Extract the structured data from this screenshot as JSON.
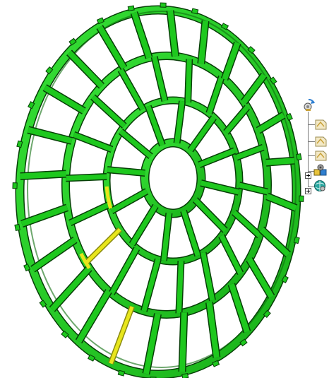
{
  "app": {
    "view": "3d-viewport"
  },
  "model": {
    "colors": {
      "part": "#1ec81e",
      "part_dark": "#0d6e0d",
      "edge": "#063f06",
      "highlight": "#e8e61c",
      "highlight_dark": "#8a8a10",
      "background": "#ffffff"
    }
  },
  "spec_tree": {
    "nodes": [
      {
        "icon": "product-root-icon",
        "expanded": true
      },
      {
        "icon": "part-document-icon"
      },
      {
        "icon": "part-document-icon"
      },
      {
        "icon": "part-document-icon"
      },
      {
        "icon": "assembly-gear-icon"
      },
      {
        "icon": "applications-globe-icon"
      }
    ]
  }
}
